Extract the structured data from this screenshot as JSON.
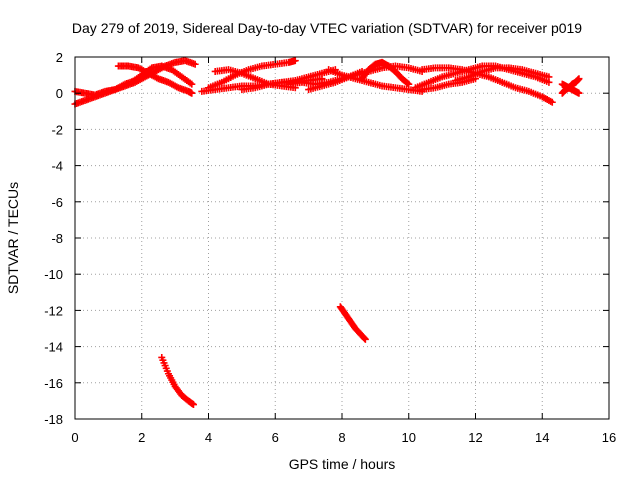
{
  "chart_data": {
    "type": "scatter",
    "title": "Day 279 of 2019, Sidereal Day-to-day VTEC variation (SDTVAR) for receiver p019",
    "xlabel": "GPS time / hours",
    "ylabel": "SDTVAR / TECUs",
    "xlim": [
      0,
      16
    ],
    "ylim": [
      -18,
      2
    ],
    "xticks": [
      0,
      2,
      4,
      6,
      8,
      10,
      12,
      14,
      16
    ],
    "yticks": [
      -18,
      -16,
      -14,
      -12,
      -10,
      -8,
      -6,
      -4,
      -2,
      0,
      2
    ],
    "grid": true,
    "marker": "plus",
    "color": "#ff0000",
    "series": [
      {
        "x": [
          0.0,
          0.3,
          0.6,
          0.9,
          1.2,
          1.5,
          1.8,
          2.1,
          2.4,
          2.7,
          3.0,
          3.3,
          3.6
        ],
        "y": [
          -0.6,
          -0.4,
          -0.2,
          0.0,
          0.2,
          0.4,
          0.6,
          0.9,
          1.2,
          1.5,
          1.7,
          1.8,
          1.6
        ]
      },
      {
        "x": [
          0.0,
          0.3,
          0.6,
          0.9,
          1.2,
          1.5,
          1.8
        ],
        "y": [
          0.1,
          0.0,
          -0.1,
          0.1,
          0.2,
          0.5,
          0.7
        ]
      },
      {
        "x": [
          1.3,
          1.6,
          1.9,
          2.2,
          2.5,
          2.8,
          3.1,
          3.4,
          3.5
        ],
        "y": [
          1.5,
          1.5,
          1.4,
          1.1,
          0.8,
          0.6,
          0.3,
          0.1,
          0.0
        ]
      },
      {
        "x": [
          1.7,
          2.0,
          2.3,
          2.6,
          2.9,
          3.2,
          3.5
        ],
        "y": [
          0.6,
          1.0,
          1.4,
          1.5,
          1.3,
          0.9,
          0.5
        ]
      },
      {
        "x": [
          2.6,
          2.8,
          3.0,
          3.2,
          3.4,
          3.55
        ],
        "y": [
          -14.6,
          -15.5,
          -16.2,
          -16.7,
          -17.0,
          -17.2
        ]
      },
      {
        "x": [
          3.8,
          4.2,
          4.6,
          5.0,
          5.4,
          5.8,
          6.2,
          6.6,
          7.0,
          7.4
        ],
        "y": [
          0.1,
          0.2,
          0.3,
          0.4,
          0.4,
          0.5,
          0.6,
          0.6,
          0.7,
          0.8
        ]
      },
      {
        "x": [
          4.0,
          4.4,
          4.8,
          5.2,
          5.6,
          6.0,
          6.4,
          6.6
        ],
        "y": [
          0.3,
          0.6,
          1.0,
          1.3,
          1.5,
          1.6,
          1.7,
          1.8
        ]
      },
      {
        "x": [
          4.2,
          4.6,
          5.0,
          5.4,
          5.8,
          6.2,
          6.6
        ],
        "y": [
          1.2,
          1.3,
          1.1,
          0.8,
          0.5,
          0.4,
          0.3
        ]
      },
      {
        "x": [
          5.0,
          5.4,
          5.8,
          6.2,
          6.6,
          7.0,
          7.4,
          7.8
        ],
        "y": [
          0.2,
          0.3,
          0.5,
          0.6,
          0.7,
          0.9,
          1.1,
          1.3
        ]
      },
      {
        "x": [
          6.4,
          6.8,
          7.2,
          7.6,
          8.0,
          8.4,
          8.8,
          9.2,
          9.6,
          10.0,
          10.4
        ],
        "y": [
          0.5,
          0.6,
          0.5,
          0.6,
          0.8,
          1.0,
          1.2,
          1.4,
          1.5,
          1.4,
          1.2
        ]
      },
      {
        "x": [
          7.6,
          8.0,
          8.4,
          8.8,
          9.2,
          9.6,
          10.0,
          10.4
        ],
        "y": [
          1.3,
          1.0,
          0.8,
          0.6,
          0.4,
          0.3,
          0.2,
          0.1
        ]
      },
      {
        "x": [
          8.6,
          8.8,
          9.0,
          9.2,
          9.4,
          9.6,
          9.8,
          10.0
        ],
        "y": [
          0.8,
          1.3,
          1.6,
          1.7,
          1.5,
          1.2,
          0.8,
          0.5
        ]
      },
      {
        "x": [
          7.0,
          7.4,
          7.8,
          8.2,
          8.6
        ],
        "y": [
          0.2,
          0.4,
          0.6,
          0.9,
          1.2
        ]
      },
      {
        "x": [
          7.95,
          8.1,
          8.25,
          8.4,
          8.55,
          8.7
        ],
        "y": [
          -11.8,
          -12.2,
          -12.6,
          -13.0,
          -13.3,
          -13.6
        ]
      },
      {
        "x": [
          10.2,
          10.6,
          11.0,
          11.4,
          11.8,
          12.2,
          12.6,
          13.0,
          13.4,
          13.8,
          14.2
        ],
        "y": [
          0.3,
          0.6,
          0.9,
          1.1,
          1.3,
          1.5,
          1.5,
          1.3,
          1.1,
          0.9,
          0.6
        ]
      },
      {
        "x": [
          10.4,
          10.8,
          11.2,
          11.6,
          12.0,
          12.4,
          12.8,
          13.2,
          13.6,
          14.0,
          14.3
        ],
        "y": [
          1.3,
          1.4,
          1.4,
          1.3,
          1.1,
          0.9,
          0.6,
          0.3,
          0.1,
          -0.2,
          -0.5
        ]
      },
      {
        "x": [
          11.4,
          11.8,
          12.2,
          12.6,
          13.0,
          13.4,
          13.8,
          14.2
        ],
        "y": [
          0.7,
          0.9,
          1.2,
          1.4,
          1.4,
          1.3,
          1.1,
          0.9
        ]
      },
      {
        "x": [
          10.4,
          10.8,
          11.2,
          11.6,
          12.0
        ],
        "y": [
          0.2,
          0.3,
          0.5,
          0.6,
          0.8
        ]
      },
      {
        "x": [
          14.6,
          14.7,
          14.8,
          14.9,
          15.0,
          15.1
        ],
        "y": [
          0.0,
          0.2,
          0.3,
          0.5,
          0.6,
          0.8
        ]
      },
      {
        "x": [
          14.6,
          14.7,
          14.8,
          14.9,
          15.0,
          15.1
        ],
        "y": [
          0.5,
          0.4,
          0.3,
          0.2,
          0.1,
          0.0
        ]
      }
    ]
  }
}
